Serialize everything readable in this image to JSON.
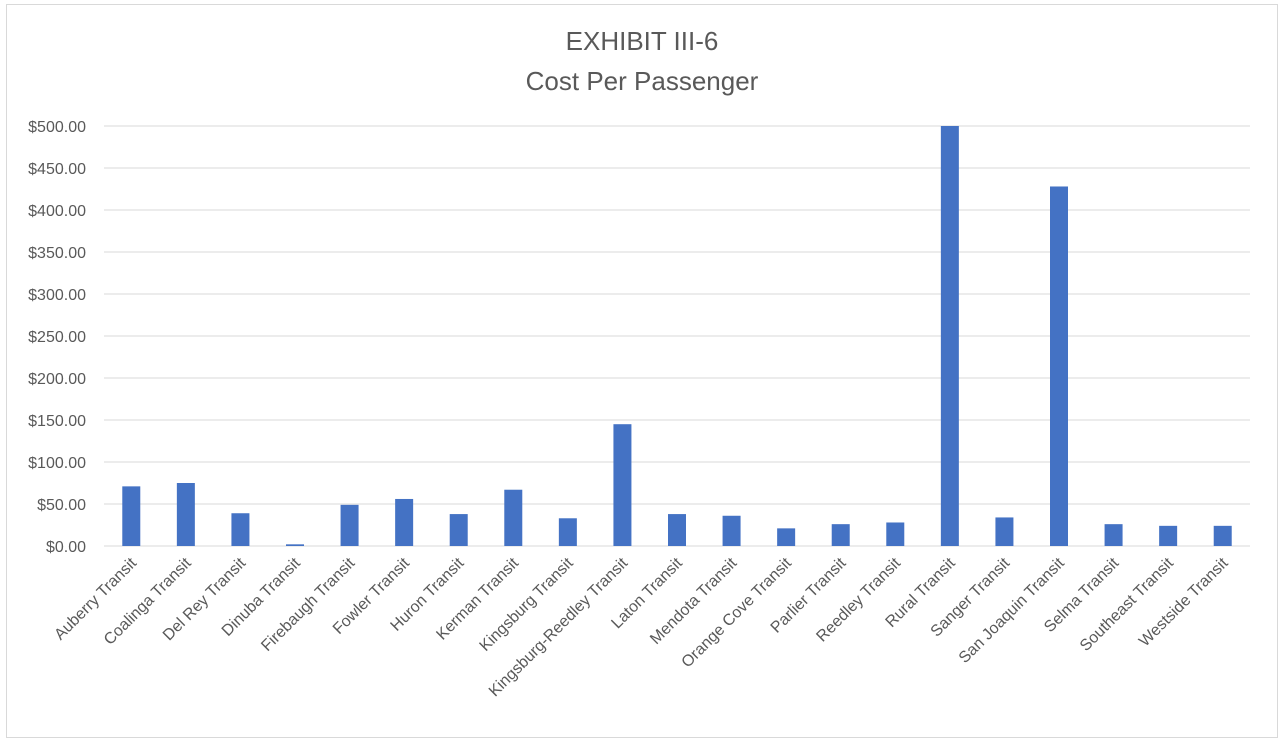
{
  "chart_data": {
    "type": "bar",
    "title": "EXHIBIT III-6",
    "subtitle": "Cost Per Passenger",
    "xlabel": "",
    "ylabel": "",
    "ylim": [
      0,
      500
    ],
    "ytick_values": [
      0,
      50,
      100,
      150,
      200,
      250,
      300,
      350,
      400,
      450,
      500
    ],
    "ytick_labels": [
      "$0.00",
      "$50.00",
      "$100.00",
      "$150.00",
      "$200.00",
      "$250.00",
      "$300.00",
      "$350.00",
      "$400.00",
      "$450.00",
      "$500.00"
    ],
    "grid": true,
    "legend": "none",
    "categories": [
      "Auberry Transit",
      "Coalinga Transit",
      "Del Rey Transit",
      "Dinuba Transit",
      "Firebaugh Transit",
      "Fowler Transit",
      "Huron Transit",
      "Kerman Transit",
      "Kingsburg Transit",
      "Kingsburg-Reedley Transit",
      "Laton Transit",
      "Mendota Transit",
      "Orange Cove Transit",
      "Parlier Transit",
      "Reedley Transit",
      "Rural Transit",
      "Sanger Transit",
      "San Joaquin Transit",
      "Selma Transit",
      "Southeast Transit",
      "Westside Transit"
    ],
    "values": [
      71,
      75,
      39,
      2,
      49,
      56,
      38,
      67,
      33,
      145,
      38,
      36,
      21,
      26,
      28,
      500,
      34,
      428,
      26,
      24,
      24
    ],
    "bar_color": "#4472c4",
    "grid_color": "#d9d9d9"
  }
}
